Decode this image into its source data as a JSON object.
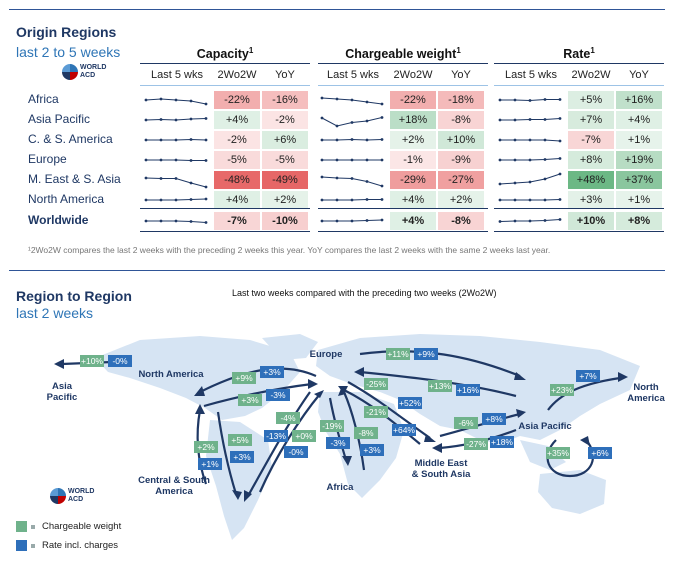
{
  "top": {
    "title": "Origin Regions",
    "subtitle": "last 2 to 5 weeks",
    "logo_text": "WORLD ACD",
    "groups": [
      {
        "title": "Capacity",
        "sup": "1"
      },
      {
        "title": "Chargeable weight",
        "sup": "1"
      },
      {
        "title": "Rate",
        "sup": "1"
      }
    ],
    "col_headers": [
      "Last 5 wks",
      "2Wo2W",
      "YoY"
    ],
    "footnote": "¹2Wo2W compares the last 2 weeks with the preceding 2 weeks this year. YoY compares the last 2 weeks with the same 2 weeks last year."
  },
  "chart_data": [
    {
      "type": "table",
      "title": "Origin Regions – last 2 to 5 weeks",
      "rows": [
        "Africa",
        "Asia Pacific",
        "C. & S. America",
        "Europe",
        "M. East & S. Asia",
        "North America",
        "Worldwide"
      ],
      "columns": [
        "Capacity 2Wo2W",
        "Capacity YoY",
        "Chargeable weight 2Wo2W",
        "Chargeable weight YoY",
        "Rate 2Wo2W",
        "Rate YoY"
      ],
      "values": [
        [
          "-22%",
          "-16%",
          "-22%",
          "-18%",
          "+5%",
          "+16%"
        ],
        [
          "+4%",
          "-2%",
          "+18%",
          "-8%",
          "+7%",
          "+4%"
        ],
        [
          "-2%",
          "+6%",
          "+2%",
          "+10%",
          "-7%",
          "+1%"
        ],
        [
          "-5%",
          "-5%",
          "-1%",
          "-9%",
          "+8%",
          "+19%"
        ],
        [
          "-48%",
          "-49%",
          "-29%",
          "-27%",
          "+48%",
          "+37%"
        ],
        [
          "+4%",
          "+2%",
          "+4%",
          "+2%",
          "+3%",
          "+1%"
        ],
        [
          "-7%",
          "-10%",
          "+4%",
          "-8%",
          "+10%",
          "+8%"
        ]
      ],
      "sparklines": {
        "capacity": [
          [
            3,
            3.2,
            3,
            2.8,
            2.2
          ],
          [
            3,
            3.1,
            3,
            3.2,
            3.3
          ],
          [
            3,
            3,
            3,
            3.1,
            3
          ],
          [
            3,
            3,
            3,
            2.9,
            2.9
          ],
          [
            3.4,
            3.3,
            3.3,
            2.4,
            1.6
          ],
          [
            3,
            3,
            3,
            3.1,
            3.2
          ],
          [
            3,
            3,
            3,
            2.9,
            2.7
          ]
        ],
        "chargeable_weight": [
          [
            3.4,
            3.2,
            3,
            2.6,
            2.2
          ],
          [
            3.4,
            1.8,
            2.5,
            2.8,
            3.5
          ],
          [
            3,
            3,
            3.1,
            3,
            3.1
          ],
          [
            3,
            3,
            3,
            3,
            3
          ],
          [
            3.6,
            3.4,
            3.3,
            2.7,
            1.8
          ],
          [
            3,
            3,
            3,
            3.1,
            3.1
          ],
          [
            3,
            3,
            3,
            3.1,
            3.2
          ]
        ],
        "rate": [
          [
            3,
            3,
            2.9,
            3.1,
            3.1
          ],
          [
            3,
            3,
            3.1,
            3.1,
            3.3
          ],
          [
            3,
            3,
            3,
            3,
            2.8
          ],
          [
            3,
            3,
            3,
            3.1,
            3.3
          ],
          [
            2.2,
            2.4,
            2.6,
            3.2,
            4.2
          ],
          [
            3,
            3,
            3,
            3,
            3.1
          ],
          [
            2.9,
            3,
            3,
            3.1,
            3.3
          ]
        ]
      }
    },
    {
      "type": "flow-map",
      "title": "Region to Region",
      "subtitle": "last 2 weeks",
      "caption": "Last two weeks compared with the preceding two weeks (2Wo2W)",
      "regions": [
        "Asia Pacific",
        "North America",
        "Europe",
        "Central & South America",
        "Africa",
        "Middle East & South Asia",
        "Asia Pacific",
        "North America"
      ],
      "flows": [
        {
          "from": "North America",
          "to": "Asia Pacific",
          "chargeable_weight": "+10%",
          "rate": "-0%"
        },
        {
          "from": "Europe",
          "to": "North America",
          "chargeable_weight": "+9%",
          "rate": "+3%"
        },
        {
          "from": "North America",
          "to": "Europe",
          "chargeable_weight": "+3%",
          "rate": "-3%"
        },
        {
          "from": "Central & South America",
          "to": "North America",
          "chargeable_weight": "+2%",
          "rate": "+1%"
        },
        {
          "from": "North America",
          "to": "Central & South America",
          "chargeable_weight": "+5%",
          "rate": "+3%"
        },
        {
          "from": "Europe",
          "to": "Central & South America",
          "chargeable_weight": "-4%",
          "rate": "-13%"
        },
        {
          "from": "Central & South America",
          "to": "Europe",
          "chargeable_weight": "+0%",
          "rate": "-0%"
        },
        {
          "from": "Europe",
          "to": "Africa",
          "chargeable_weight": "-19%",
          "rate": "-3%"
        },
        {
          "from": "Africa",
          "to": "Europe",
          "chargeable_weight": "-8%",
          "rate": "+3%"
        },
        {
          "from": "Europe",
          "to": "Asia Pacific",
          "chargeable_weight": "+11%",
          "rate": "+9%"
        },
        {
          "from": "Asia Pacific",
          "to": "Europe",
          "chargeable_weight": "+13%",
          "rate": "+16%"
        },
        {
          "from": "Europe",
          "to": "Middle East & South Asia",
          "chargeable_weight": "-25%",
          "rate": "+52%"
        },
        {
          "from": "Middle East & South Asia",
          "to": "Europe",
          "chargeable_weight": "-21%",
          "rate": "+64%"
        },
        {
          "from": "Middle East & South Asia",
          "to": "Asia Pacific",
          "chargeable_weight": "-6%",
          "rate": "+8%"
        },
        {
          "from": "Asia Pacific",
          "to": "Middle East & South Asia",
          "chargeable_weight": "-27%",
          "rate": "+18%"
        },
        {
          "from": "Asia Pacific",
          "to": "North America",
          "chargeable_weight": "+23%",
          "rate": "+7%"
        },
        {
          "from": "Asia Pacific",
          "to": "Asia Pacific",
          "chargeable_weight": "+35%",
          "rate": "+6%"
        }
      ],
      "legend": [
        {
          "label": "Chargeable weight",
          "color": "#6fb28b"
        },
        {
          "label": "Rate incl. charges",
          "color": "#2e6fba"
        }
      ]
    }
  ],
  "colors": {
    "green": "#6fb28b",
    "blue": "#2e6fba",
    "navy": "#1f3864"
  },
  "bottom": {
    "title": "Region to Region",
    "subtitle": "last 2 weeks",
    "caption": "Last two weeks compared with the preceding two weeks (2Wo2W)",
    "logo_text": "WORLD ACD",
    "legend": [
      "Chargeable weight",
      "Rate incl. charges"
    ],
    "labels": {
      "asia_pacific_w": "Asia Pacific",
      "north_america_w": "North America",
      "europe": "Europe",
      "csa": "Central & South America",
      "africa": "Africa",
      "mesa": "Middle East & South Asia",
      "asia_pacific_e": "Asia Pacific",
      "north_america_e": "North America"
    }
  }
}
